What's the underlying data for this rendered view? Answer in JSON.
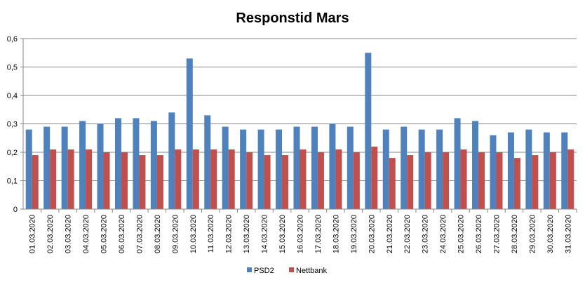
{
  "chart_data": {
    "type": "bar",
    "title": "Responstid Mars",
    "xlabel": "",
    "ylabel": "",
    "ylim": [
      0,
      0.6
    ],
    "yticks": [
      "0",
      "0,1",
      "0,2",
      "0,3",
      "0,4",
      "0,5",
      "0,6"
    ],
    "grid": true,
    "legend_position": "bottom",
    "categories": [
      "01.03.2020",
      "02.03.2020",
      "03.03.2020",
      "04.03.2020",
      "05.03.2020",
      "06.03.2020",
      "07.03.2020",
      "08.03.2020",
      "09.03.2020",
      "10.03.2020",
      "11.03.2020",
      "12.03.2020",
      "13.03.2020",
      "14.03.2020",
      "15.03.2020",
      "16.03.2020",
      "17.03.2020",
      "18.03.2020",
      "19.03.2020",
      "20.03.2020",
      "21.03.2020",
      "22.03.2020",
      "23.03.2020",
      "24.03.2020",
      "25.03.2020",
      "26.03.2020",
      "27.03.2020",
      "28.03.2020",
      "29.03.2020",
      "30.03.2020",
      "31.03.2020"
    ],
    "series": [
      {
        "name": "PSD2",
        "color": "#4F81BD",
        "values": [
          0.28,
          0.29,
          0.29,
          0.31,
          0.3,
          0.32,
          0.32,
          0.31,
          0.34,
          0.53,
          0.33,
          0.29,
          0.28,
          0.28,
          0.28,
          0.29,
          0.29,
          0.3,
          0.29,
          0.55,
          0.28,
          0.29,
          0.28,
          0.28,
          0.32,
          0.31,
          0.26,
          0.27,
          0.28,
          0.27,
          0.27
        ]
      },
      {
        "name": "Nettbank",
        "color": "#C0504D",
        "values": [
          0.19,
          0.21,
          0.21,
          0.21,
          0.2,
          0.2,
          0.19,
          0.19,
          0.21,
          0.21,
          0.21,
          0.21,
          0.2,
          0.19,
          0.19,
          0.21,
          0.2,
          0.21,
          0.2,
          0.22,
          0.18,
          0.19,
          0.2,
          0.2,
          0.21,
          0.2,
          0.2,
          0.18,
          0.19,
          0.2,
          0.21
        ]
      }
    ]
  }
}
